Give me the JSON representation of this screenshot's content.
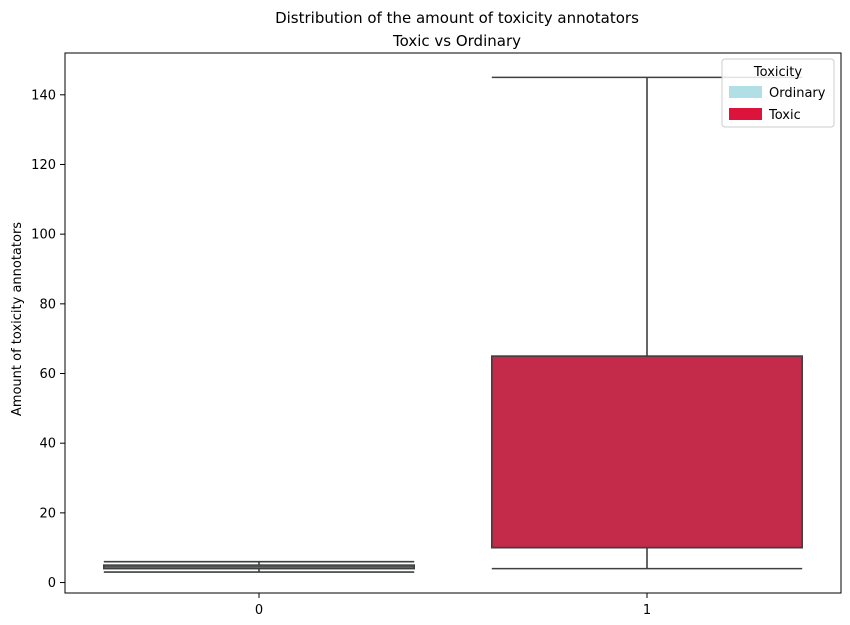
{
  "chart_data": {
    "type": "box",
    "title": "Distribution of the amount of toxicity annotators",
    "subtitle": "Toxic vs Ordinary",
    "xlabel": "",
    "ylabel": "Amount of toxicity annotators",
    "categories": [
      "0",
      "1"
    ],
    "ylim": [
      -3,
      152
    ],
    "yticks": [
      0,
      20,
      40,
      60,
      80,
      100,
      120,
      140
    ],
    "boxes": [
      {
        "category": "0",
        "whisker_low": 3,
        "q1": 4,
        "median": 4.5,
        "q3": 5,
        "whisker_high": 6,
        "color": "#B0E0E6"
      },
      {
        "category": "1",
        "whisker_low": 4,
        "q1": 10,
        "median": 10,
        "q3": 65,
        "whisker_high": 145,
        "color": "#C42B4A"
      }
    ],
    "legend": {
      "title": "Toxicity",
      "position": "top-right",
      "items": [
        {
          "label": "Ordinary",
          "color": "#B0E0E6"
        },
        {
          "label": "Toxic",
          "color": "#DC143C"
        }
      ]
    },
    "grid": false
  }
}
